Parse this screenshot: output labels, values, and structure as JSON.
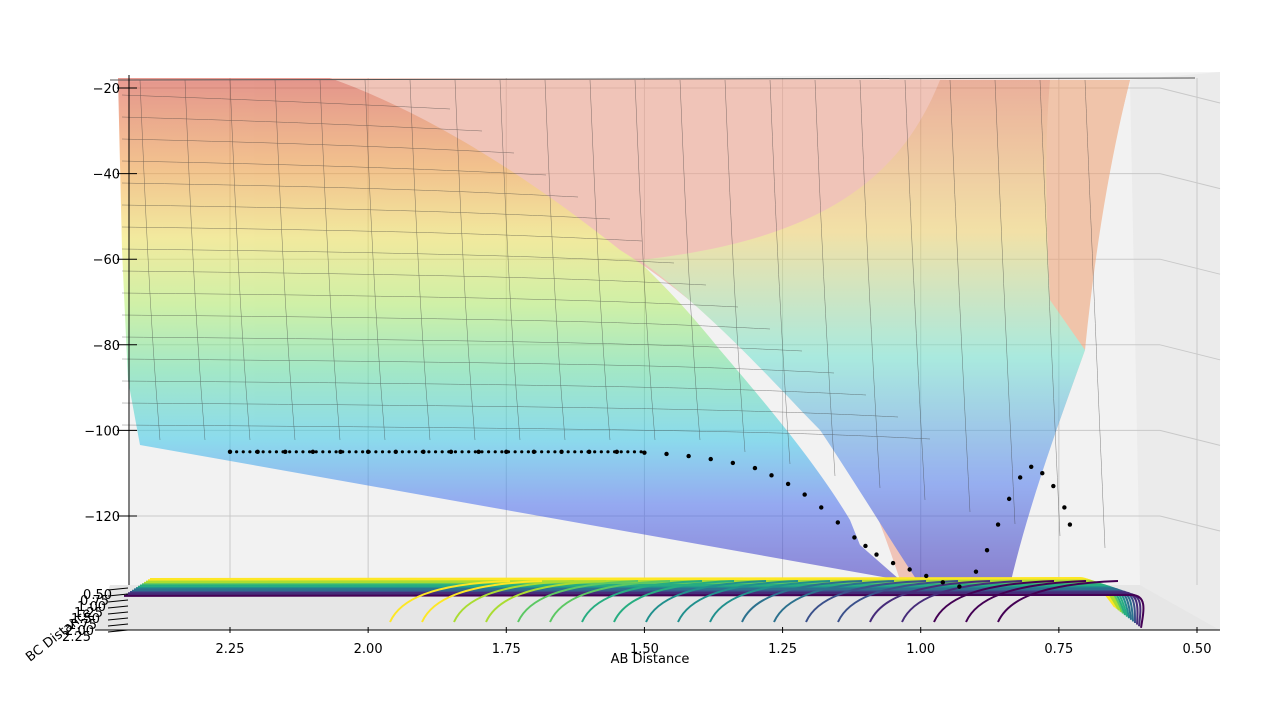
{
  "chart_data": {
    "type": "surface3d",
    "title": "",
    "xlabel": "AB Distance",
    "ylabel": "BC Distance",
    "zlabel": "",
    "x_ticks": [
      "2.25",
      "2.00",
      "1.75",
      "1.50",
      "1.25",
      "1.00",
      "0.75",
      "0.50"
    ],
    "y_ticks": [
      "0.50",
      "0.75",
      "1.00",
      "1.25",
      "1.50",
      "1.75",
      "2.00",
      "2.25"
    ],
    "z_ticks": [
      "−20",
      "−40",
      "−60",
      "−80",
      "−100",
      "−120"
    ],
    "x_range": [
      2.45,
      0.45
    ],
    "z_range": [
      -140,
      -18
    ],
    "surface_colormap": "jet",
    "contour_colormap": "viridis",
    "grid": true,
    "trajectory": {
      "color": "#000000",
      "points": [
        [
          2.25,
          -105
        ],
        [
          2.2,
          -105
        ],
        [
          2.15,
          -105
        ],
        [
          2.1,
          -105
        ],
        [
          2.05,
          -105
        ],
        [
          2.0,
          -105
        ],
        [
          1.95,
          -105
        ],
        [
          1.9,
          -105
        ],
        [
          1.85,
          -105
        ],
        [
          1.8,
          -105
        ],
        [
          1.75,
          -105
        ],
        [
          1.7,
          -105
        ],
        [
          1.65,
          -105
        ],
        [
          1.6,
          -105
        ],
        [
          1.55,
          -105
        ],
        [
          1.5,
          -105.2
        ],
        [
          1.46,
          -105.5
        ],
        [
          1.42,
          -106
        ],
        [
          1.38,
          -106.7
        ],
        [
          1.34,
          -107.6
        ],
        [
          1.3,
          -108.8
        ],
        [
          1.27,
          -110.5
        ],
        [
          1.24,
          -112.5
        ],
        [
          1.21,
          -115
        ],
        [
          1.18,
          -118
        ],
        [
          1.15,
          -121.5
        ],
        [
          1.12,
          -125
        ],
        [
          1.1,
          -127
        ],
        [
          1.08,
          -129
        ],
        [
          1.05,
          -131
        ],
        [
          1.02,
          -132.5
        ],
        [
          0.99,
          -134
        ],
        [
          0.96,
          -135.5
        ],
        [
          0.93,
          -136.5
        ],
        [
          0.9,
          -133
        ],
        [
          0.88,
          -128
        ],
        [
          0.86,
          -122
        ],
        [
          0.84,
          -116
        ],
        [
          0.82,
          -111
        ],
        [
          0.8,
          -108.5
        ],
        [
          0.78,
          -110
        ],
        [
          0.76,
          -113
        ],
        [
          0.74,
          -118
        ],
        [
          0.73,
          -122
        ]
      ]
    }
  }
}
